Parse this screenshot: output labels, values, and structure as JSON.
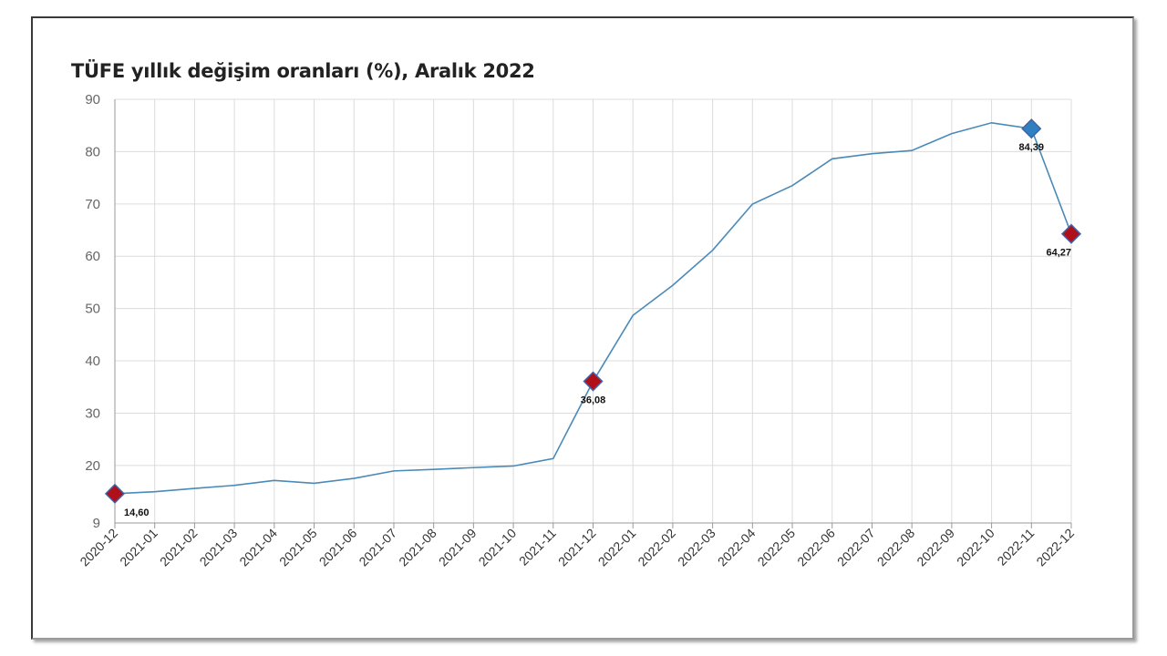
{
  "chart_data": {
    "type": "line",
    "title": "TÜFE yıllık değişim oranları (%), Aralık 2022",
    "xlabel": "",
    "ylabel": "",
    "ylim": [
      9,
      90
    ],
    "y_ticks": [
      9,
      20,
      30,
      40,
      50,
      60,
      70,
      80,
      90
    ],
    "grid": true,
    "categories": [
      "2020-12",
      "2021-01",
      "2021-02",
      "2021-03",
      "2021-04",
      "2021-05",
      "2021-06",
      "2021-07",
      "2021-08",
      "2021-09",
      "2021-10",
      "2021-11",
      "2021-12",
      "2022-01",
      "2022-02",
      "2022-03",
      "2022-04",
      "2022-05",
      "2022-06",
      "2022-07",
      "2022-08",
      "2022-09",
      "2022-10",
      "2022-11",
      "2022-12"
    ],
    "series": [
      {
        "color": "#4a8ab8",
        "values": [
          14.6,
          14.97,
          15.61,
          16.19,
          17.14,
          16.59,
          17.53,
          18.95,
          19.25,
          19.58,
          19.89,
          21.31,
          36.08,
          48.69,
          54.44,
          61.14,
          69.97,
          73.5,
          78.62,
          79.6,
          80.21,
          83.45,
          85.51,
          84.39,
          64.27
        ]
      }
    ],
    "markers": [
      {
        "index": 0,
        "label": "14,60",
        "color": "#b0101a"
      },
      {
        "index": 12,
        "label": "36,08",
        "color": "#b0101a"
      },
      {
        "index": 23,
        "label": "84,39",
        "color": "#2f7fc1"
      },
      {
        "index": 24,
        "label": "64,27",
        "color": "#b0101a"
      }
    ]
  }
}
